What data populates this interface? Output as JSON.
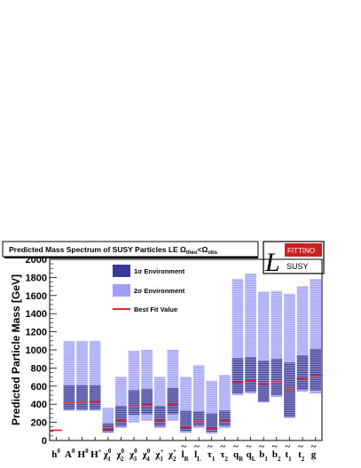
{
  "chart_data": {
    "type": "bar",
    "title": "Predicted Mass Spectrum of SUSY Particles LE Ω",
    "title_sub1": "theo",
    "title_mid": "<Ω",
    "title_sub2": "obs",
    "ylabel": "Predicted Particle Mass [GeV]",
    "xlabel": "",
    "ylim": [
      0,
      2000
    ],
    "yticks": [
      "0",
      "200",
      "400",
      "600",
      "800",
      "1000",
      "1200",
      "1400",
      "1600",
      "1800",
      "2000"
    ],
    "categories": [
      "h0",
      "A0",
      "H0",
      "H+",
      "χ1_0",
      "χ2_0",
      "χ3_0",
      "χ4_0",
      "χ1_+",
      "χ2_+",
      "ẽR",
      "ẽL",
      "τ1",
      "τ2",
      "q̃R",
      "q̃L",
      "b̃1",
      "b̃2",
      "t̃1",
      "t̃2",
      "g̃"
    ],
    "category_labels": [
      {
        "base": "h",
        "sup": "0",
        "sub": "",
        "tilde": false
      },
      {
        "base": "A",
        "sup": "0",
        "sub": "",
        "tilde": false
      },
      {
        "base": "H",
        "sup": "0",
        "sub": "",
        "tilde": false
      },
      {
        "base": "H",
        "sup": "+",
        "sub": "",
        "tilde": false
      },
      {
        "base": "χ",
        "sup": "0",
        "sub": "1",
        "tilde": false
      },
      {
        "base": "χ",
        "sup": "0",
        "sub": "2",
        "tilde": false
      },
      {
        "base": "χ",
        "sup": "0",
        "sub": "3",
        "tilde": false
      },
      {
        "base": "χ",
        "sup": "0",
        "sub": "4",
        "tilde": false
      },
      {
        "base": "χ",
        "sup": "+",
        "sub": "1",
        "tilde": false
      },
      {
        "base": "χ",
        "sup": "+",
        "sub": "2",
        "tilde": false
      },
      {
        "base": "l",
        "sup": "",
        "sub": "R",
        "tilde": true
      },
      {
        "base": "l",
        "sup": "",
        "sub": "L",
        "tilde": true
      },
      {
        "base": "τ",
        "sup": "",
        "sub": "1",
        "tilde": true
      },
      {
        "base": "τ",
        "sup": "",
        "sub": "2",
        "tilde": true
      },
      {
        "base": "q",
        "sup": "",
        "sub": "R",
        "tilde": true
      },
      {
        "base": "q",
        "sup": "",
        "sub": "L",
        "tilde": true
      },
      {
        "base": "b",
        "sup": "",
        "sub": "1",
        "tilde": true
      },
      {
        "base": "b",
        "sup": "",
        "sub": "2",
        "tilde": true
      },
      {
        "base": "t",
        "sup": "",
        "sub": "1",
        "tilde": true
      },
      {
        "base": "t",
        "sup": "",
        "sub": "2",
        "tilde": true
      },
      {
        "base": "g",
        "sup": "",
        "sub": "",
        "tilde": true
      }
    ],
    "best_fit": [
      113,
      420,
      420,
      428,
      130,
      220,
      370,
      395,
      220,
      400,
      150,
      210,
      130,
      220,
      640,
      665,
      625,
      650,
      560,
      680,
      715
    ],
    "sigma1": [
      [
        108,
        116
      ],
      [
        340,
        610
      ],
      [
        340,
        610
      ],
      [
        340,
        610
      ],
      [
        95,
        190
      ],
      [
        155,
        380
      ],
      [
        280,
        555
      ],
      [
        290,
        570
      ],
      [
        155,
        380
      ],
      [
        290,
        580
      ],
      [
        100,
        330
      ],
      [
        160,
        320
      ],
      [
        90,
        300
      ],
      [
        160,
        330
      ],
      [
        520,
        910
      ],
      [
        540,
        920
      ],
      [
        430,
        880
      ],
      [
        500,
        900
      ],
      [
        260,
        860
      ],
      [
        560,
        940
      ],
      [
        550,
        1010
      ]
    ],
    "sigma2": [
      [
        105,
        118
      ],
      [
        330,
        1100
      ],
      [
        330,
        1100
      ],
      [
        330,
        1100
      ],
      [
        85,
        360
      ],
      [
        140,
        700
      ],
      [
        200,
        990
      ],
      [
        220,
        1000
      ],
      [
        140,
        700
      ],
      [
        220,
        1000
      ],
      [
        85,
        700
      ],
      [
        140,
        830
      ],
      [
        75,
        660
      ],
      [
        140,
        720
      ],
      [
        500,
        1780
      ],
      [
        520,
        1840
      ],
      [
        420,
        1640
      ],
      [
        480,
        1650
      ],
      [
        250,
        1620
      ],
      [
        540,
        1700
      ],
      [
        520,
        1780
      ]
    ],
    "series": [
      {
        "name": "1σ Environment",
        "color": "#3b3a99"
      },
      {
        "name": "2σ Environment",
        "color": "#9f9ff5"
      },
      {
        "name": "Best Fit Value",
        "color": "#e8222a"
      }
    ],
    "legend_position": "top-left inside plot",
    "grid": false
  },
  "logo": {
    "letter": "L",
    "top_text": "FITTINO",
    "bottom_text": "SUSY"
  },
  "colors": {
    "sigma1": "#3b3a99",
    "sigma2": "#9f9ff5",
    "bestfit": "#e8222a",
    "stripe": "#ffffff",
    "fittino_red": "#cc1f1f"
  }
}
